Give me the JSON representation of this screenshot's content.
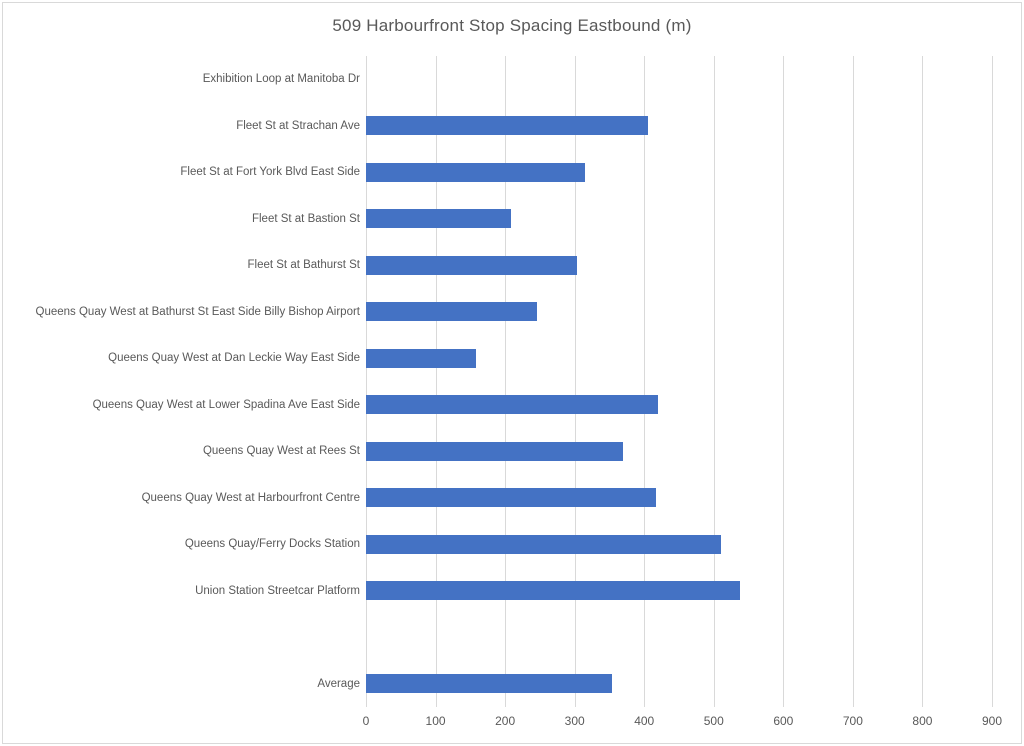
{
  "chart_data": {
    "type": "bar",
    "orientation": "horizontal",
    "title": "509 Harbourfront Stop Spacing Eastbound (m)",
    "categories": [
      "Exhibition Loop at Manitoba Dr",
      "Fleet St at Strachan Ave",
      "Fleet St at Fort York Blvd East Side",
      "Fleet St at Bastion St",
      "Fleet St at Bathurst St",
      "Queens Quay West at Bathurst St East Side Billy Bishop Airport",
      "Queens Quay West at Dan Leckie Way East Side",
      "Queens Quay West at Lower Spadina Ave East Side",
      "Queens Quay West at Rees St",
      "Queens Quay West at Harbourfront Centre",
      "Queens Quay/Ferry Docks Station",
      "Union Station Streetcar Platform",
      "",
      "Average"
    ],
    "values": [
      0,
      405,
      315,
      208,
      304,
      246,
      158,
      420,
      370,
      417,
      511,
      538,
      null,
      354
    ],
    "xlabel": "",
    "ylabel": "",
    "xlim": [
      0,
      900
    ],
    "x_ticks": [
      0,
      100,
      200,
      300,
      400,
      500,
      600,
      700,
      800,
      900
    ],
    "grid": "vertical",
    "legend": "none",
    "bar_color": "#4472C4",
    "gridline_color": "#D9D9D9",
    "text_color": "#595959",
    "border_color": "#D9D9D9",
    "background_color": "#FFFFFF"
  }
}
